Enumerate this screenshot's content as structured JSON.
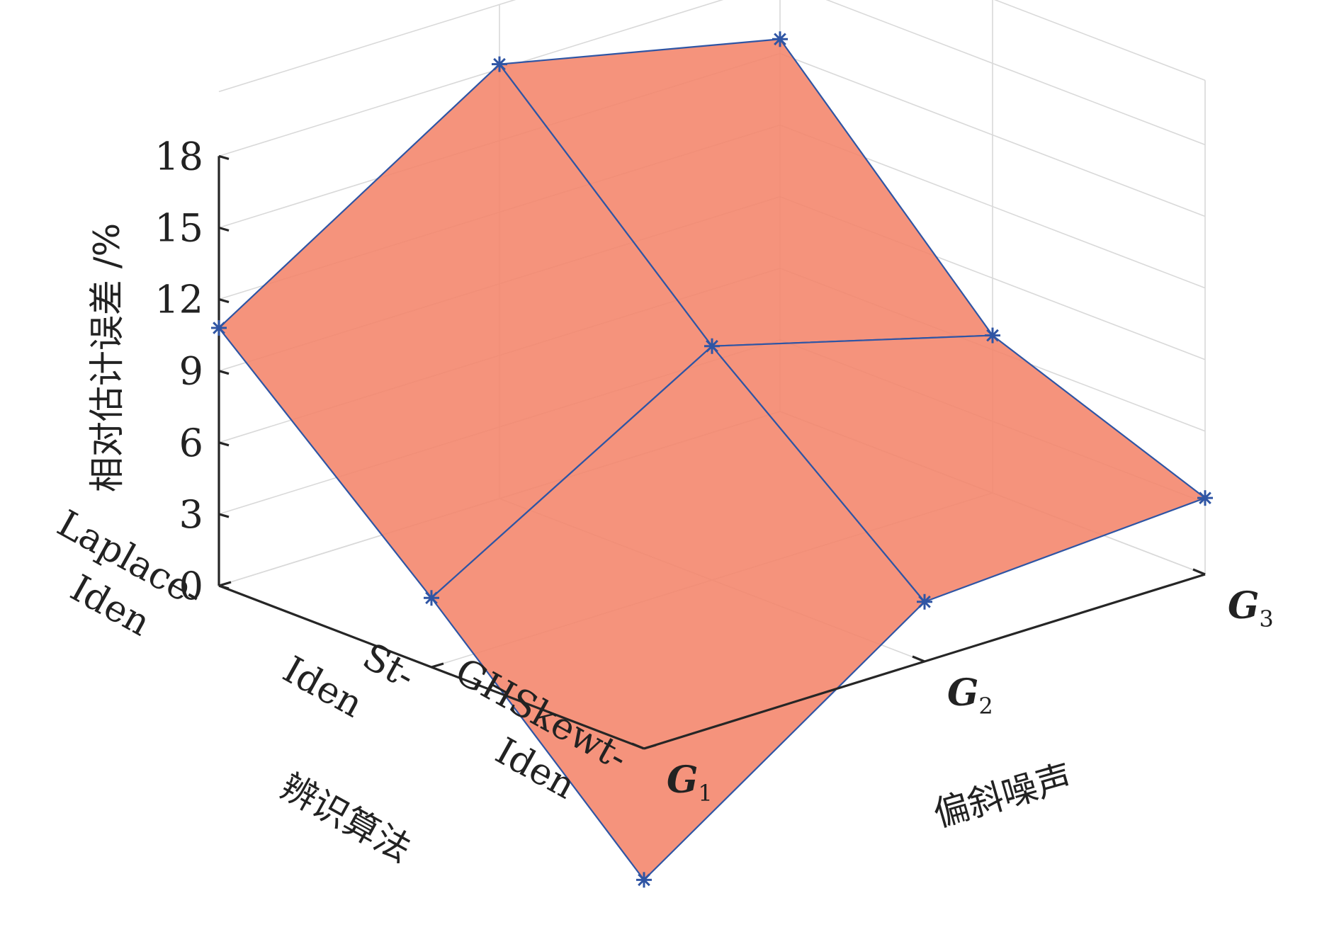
{
  "chart_data": {
    "type": "surface3d",
    "title": "",
    "zlabel": "相对估计误差 /%",
    "xlabel": "辨识算法",
    "ylabel": "偏斜噪声",
    "x_categories": [
      [
        "Laplace-",
        "Iden"
      ],
      [
        "St-",
        "Iden"
      ],
      [
        "GHSkewt-",
        "Iden"
      ]
    ],
    "y_categories": [
      {
        "base": "G",
        "sub": "1"
      },
      {
        "base": "G",
        "sub": "2"
      },
      {
        "base": "G",
        "sub": "3"
      }
    ],
    "zlim": [
      0,
      18
    ],
    "zticks": [
      "0",
      "3",
      "6",
      "9",
      "12",
      "15",
      "18"
    ],
    "grid": true,
    "surface_color": "#f4846a",
    "edge_color": "#2f55a4",
    "marker": "*",
    "z": [
      [
        10.8,
        18.2,
        15.6
      ],
      [
        2.9,
        9.8,
        6.6
      ],
      [
        -5.5,
        2.5,
        3.2
      ]
    ]
  }
}
